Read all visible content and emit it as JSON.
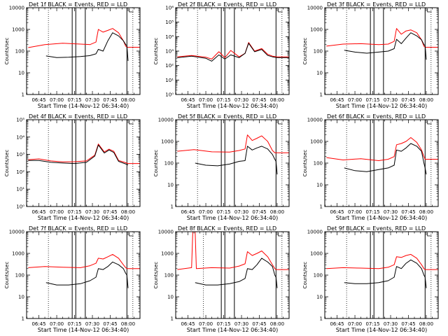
{
  "chart_data": [
    {
      "type": "line",
      "title": "Det 1f BLACK = Events, RED = LLD",
      "xlabel": "Start Time (14-Nov-12 06:34:40)",
      "ylabel": "Counts/sec",
      "yscale": "log",
      "ylim": [
        1,
        10000
      ],
      "xlim": [
        "06:34:40",
        "08:10:00"
      ],
      "yticks": [
        "1",
        "10",
        "100",
        "1000",
        "10000"
      ],
      "xticks": [
        "06:45",
        "07:00",
        "07:15",
        "07:30",
        "07:45",
        "08:00"
      ],
      "dotted_lines": [
        "06:53",
        "08:04"
      ],
      "solid_lines": [
        "07:13",
        "07:16",
        "07:24",
        "07:59"
      ],
      "series": [
        {
          "color": "#000000",
          "x": [
            "06:51",
            "07:00",
            "07:10",
            "07:20",
            "07:28",
            "07:33",
            "07:35",
            "07:39",
            "07:43",
            "07:47",
            "07:52",
            "07:56",
            "07:58",
            "07:59",
            "08:00"
          ],
          "values": [
            60,
            50,
            52,
            56,
            62,
            75,
            120,
            100,
            300,
            700,
            500,
            300,
            200,
            180,
            35
          ]
        },
        {
          "color": "#ff0000",
          "x": [
            "06:36",
            "06:50",
            "07:05",
            "07:20",
            "07:28",
            "07:33",
            "07:35",
            "07:39",
            "07:43",
            "07:47",
            "07:52",
            "07:56",
            "07:58",
            "07:59",
            "08:05",
            "08:10"
          ],
          "values": [
            145,
            200,
            230,
            210,
            200,
            260,
            1000,
            750,
            900,
            1100,
            700,
            300,
            170,
            150,
            150,
            150
          ]
        }
      ]
    },
    {
      "type": "line",
      "title": "Det 2f BLACK = Events, RED = LLD",
      "xlabel": "Start Time (14-Nov-12 06:34:40)",
      "ylabel": "Counts/sec",
      "yscale": "log",
      "ylim": [
        1,
        1000000
      ],
      "xlim": [
        "06:34:40",
        "08:10:00"
      ],
      "yticks": [
        "10⁰",
        "10¹",
        "10²",
        "10³",
        "10⁴",
        "10⁵",
        "10⁶"
      ],
      "xticks": [
        "06:45",
        "07:00",
        "07:15",
        "07:30",
        "07:45",
        "08:00"
      ],
      "dotted_lines": [
        "06:53",
        "08:04"
      ],
      "solid_lines": [
        "07:13",
        "07:16",
        "07:24",
        "07:59"
      ],
      "series": [
        {
          "color": "#000000",
          "x": [
            "06:36",
            "06:48",
            "07:00",
            "07:05",
            "07:11",
            "07:16",
            "07:21",
            "07:28",
            "07:33",
            "07:36",
            "07:41",
            "07:47",
            "07:52",
            "07:56",
            "08:00",
            "08:10"
          ],
          "values": [
            350,
            450,
            320,
            200,
            550,
            280,
            550,
            350,
            700,
            3500,
            900,
            1300,
            500,
            400,
            350,
            350
          ]
        },
        {
          "color": "#ff0000",
          "x": [
            "06:36",
            "06:48",
            "07:00",
            "07:05",
            "07:11",
            "07:16",
            "07:21",
            "07:28",
            "07:33",
            "07:36",
            "07:41",
            "07:47",
            "07:52",
            "07:56",
            "08:00",
            "08:10"
          ],
          "values": [
            400,
            500,
            380,
            280,
            900,
            350,
            1100,
            400,
            700,
            4000,
            1000,
            1500,
            600,
            450,
            400,
            400
          ]
        }
      ]
    },
    {
      "type": "line",
      "title": "Det 3f BLACK = Events, RED = LLD",
      "xlabel": "Start Time (14-Nov-12 06:34:40)",
      "ylabel": "Counts/sec",
      "yscale": "log",
      "ylim": [
        1,
        10000
      ],
      "xlim": [
        "06:34:40",
        "08:10:00"
      ],
      "yticks": [
        "1",
        "10",
        "100",
        "1000",
        "10000"
      ],
      "xticks": [
        "06:45",
        "07:00",
        "07:15",
        "07:30",
        "07:45",
        "08:00"
      ],
      "dotted_lines": [
        "06:53",
        "08:04"
      ],
      "solid_lines": [
        "07:13",
        "07:16",
        "07:24",
        "07:59"
      ],
      "series": [
        {
          "color": "#000000",
          "x": [
            "06:51",
            "07:00",
            "07:10",
            "07:20",
            "07:28",
            "07:33",
            "07:35",
            "07:39",
            "07:43",
            "07:47",
            "07:52",
            "07:56",
            "07:58",
            "07:59",
            "08:00"
          ],
          "values": [
            110,
            90,
            80,
            90,
            100,
            130,
            350,
            220,
            400,
            700,
            500,
            330,
            200,
            180,
            40
          ]
        },
        {
          "color": "#ff0000",
          "x": [
            "06:36",
            "06:50",
            "07:05",
            "07:20",
            "07:28",
            "07:33",
            "07:35",
            "07:39",
            "07:43",
            "07:47",
            "07:52",
            "07:56",
            "07:58",
            "07:59",
            "08:05",
            "08:10"
          ],
          "values": [
            170,
            210,
            220,
            200,
            210,
            280,
            1100,
            600,
            850,
            950,
            700,
            330,
            170,
            150,
            150,
            150
          ]
        }
      ]
    },
    {
      "type": "line",
      "title": "Det 4f BLACK = Events, RED = LLD",
      "xlabel": "Start Time (14-Nov-12 06:34:40)",
      "ylabel": "Counts/sec",
      "yscale": "log",
      "ylim": [
        1,
        100000
      ],
      "xlim": [
        "06:34:40",
        "08:10:00"
      ],
      "yticks": [
        "10⁰",
        "10¹",
        "10²",
        "10³",
        "10⁴",
        "10⁵"
      ],
      "xticks": [
        "06:45",
        "07:00",
        "07:15",
        "07:30",
        "07:45",
        "08:00"
      ],
      "dotted_lines": [
        "06:53",
        "08:04"
      ],
      "solid_lines": [
        "07:13",
        "07:16",
        "07:24",
        "07:59"
      ],
      "series": [
        {
          "color": "#000000",
          "x": [
            "06:36",
            "06:45",
            "06:55",
            "07:05",
            "07:15",
            "07:25",
            "07:32",
            "07:35",
            "07:40",
            "07:44",
            "07:48",
            "07:52",
            "07:57",
            "08:00"
          ],
          "values": [
            450,
            450,
            350,
            320,
            300,
            350,
            800,
            3500,
            1200,
            1800,
            1300,
            400,
            300,
            250
          ]
        },
        {
          "color": "#ff0000",
          "x": [
            "06:36",
            "06:45",
            "06:55",
            "07:05",
            "07:15",
            "07:25",
            "07:32",
            "07:35",
            "07:40",
            "07:44",
            "07:48",
            "07:52",
            "07:57",
            "08:00",
            "08:10"
          ],
          "values": [
            500,
            550,
            420,
            370,
            380,
            420,
            900,
            4000,
            1400,
            2000,
            1500,
            450,
            350,
            300,
            300
          ]
        }
      ]
    },
    {
      "type": "line",
      "title": "Det 5f BLACK = Events, RED = LLD",
      "xlabel": "Start Time (14-Nov-12 06:34:40)",
      "ylabel": "Counts/sec",
      "yscale": "log",
      "ylim": [
        1,
        10000
      ],
      "xlim": [
        "06:34:40",
        "08:10:00"
      ],
      "yticks": [
        "1",
        "10",
        "100",
        "1000",
        "10000"
      ],
      "xticks": [
        "06:45",
        "07:00",
        "07:15",
        "07:30",
        "07:45",
        "08:00"
      ],
      "dotted_lines": [
        "06:53",
        "08:04"
      ],
      "solid_lines": [
        "07:13",
        "07:16",
        "07:24",
        "07:59"
      ],
      "series": [
        {
          "color": "#000000",
          "x": [
            "06:51",
            "07:00",
            "07:10",
            "07:20",
            "07:28",
            "07:33",
            "07:35",
            "07:39",
            "07:43",
            "07:47",
            "07:52",
            "07:56",
            "07:58",
            "07:59",
            "08:00"
          ],
          "values": [
            100,
            80,
            75,
            90,
            120,
            130,
            600,
            400,
            500,
            600,
            450,
            250,
            150,
            120,
            30
          ]
        },
        {
          "color": "#ff0000",
          "x": [
            "06:36",
            "06:50",
            "07:05",
            "07:20",
            "07:28",
            "07:33",
            "07:35",
            "07:39",
            "07:43",
            "07:47",
            "07:52",
            "07:56",
            "07:58",
            "07:59",
            "08:05",
            "08:10"
          ],
          "values": [
            350,
            420,
            330,
            320,
            380,
            450,
            2000,
            1100,
            1400,
            1800,
            1000,
            380,
            300,
            300,
            300,
            300
          ]
        }
      ]
    },
    {
      "type": "line",
      "title": "Det 6f BLACK = Events, RED = LLD",
      "xlabel": "Start Time (14-Nov-12 06:34:40)",
      "ylabel": "Counts/sec",
      "yscale": "log",
      "ylim": [
        1,
        10000
      ],
      "xlim": [
        "06:34:40",
        "08:10:00"
      ],
      "yticks": [
        "1",
        "10",
        "100",
        "1000",
        "10000"
      ],
      "xticks": [
        "06:45",
        "07:00",
        "07:15",
        "07:30",
        "07:45",
        "08:00"
      ],
      "dotted_lines": [
        "06:53",
        "08:04"
      ],
      "solid_lines": [
        "07:13",
        "07:16",
        "07:24",
        "07:59"
      ],
      "series": [
        {
          "color": "#000000",
          "x": [
            "06:51",
            "07:00",
            "07:10",
            "07:20",
            "07:28",
            "07:33",
            "07:35",
            "07:39",
            "07:43",
            "07:47",
            "07:52",
            "07:56",
            "07:58",
            "07:59",
            "08:00"
          ],
          "values": [
            60,
            45,
            40,
            50,
            60,
            80,
            400,
            350,
            500,
            800,
            600,
            350,
            100,
            60,
            30
          ]
        },
        {
          "color": "#ff0000",
          "x": [
            "06:36",
            "06:50",
            "07:05",
            "07:20",
            "07:28",
            "07:33",
            "07:35",
            "07:39",
            "07:43",
            "07:47",
            "07:52",
            "07:56",
            "07:58",
            "07:59",
            "08:05",
            "08:10"
          ],
          "values": [
            180,
            140,
            160,
            130,
            150,
            200,
            700,
            800,
            1000,
            1500,
            900,
            400,
            200,
            150,
            150,
            150
          ]
        }
      ]
    },
    {
      "type": "line",
      "title": "Det 7f BLACK = Events, RED = LLD",
      "xlabel": "Start Time (14-Nov-12 06:34:40)",
      "ylabel": "Counts/sec",
      "yscale": "log",
      "ylim": [
        1,
        10000
      ],
      "xlim": [
        "06:34:40",
        "08:10:00"
      ],
      "yticks": [
        "1",
        "10",
        "100",
        "1000",
        "10000"
      ],
      "xticks": [
        "06:45",
        "07:00",
        "07:15",
        "07:30",
        "07:45",
        "08:00"
      ],
      "dotted_lines": [
        "06:53",
        "08:04"
      ],
      "solid_lines": [
        "07:13",
        "07:16",
        "07:24",
        "07:59"
      ],
      "series": [
        {
          "color": "#000000",
          "x": [
            "06:51",
            "07:00",
            "07:10",
            "07:20",
            "07:28",
            "07:33",
            "07:35",
            "07:39",
            "07:43",
            "07:47",
            "07:52",
            "07:56",
            "07:58",
            "07:59",
            "08:00"
          ],
          "values": [
            45,
            35,
            35,
            40,
            55,
            80,
            200,
            180,
            250,
            400,
            300,
            200,
            120,
            100,
            25
          ]
        },
        {
          "color": "#ff0000",
          "x": [
            "06:36",
            "06:50",
            "07:05",
            "07:20",
            "07:28",
            "07:33",
            "07:35",
            "07:39",
            "07:43",
            "07:47",
            "07:52",
            "07:56",
            "07:58",
            "07:59",
            "08:05",
            "08:10"
          ],
          "values": [
            220,
            250,
            230,
            220,
            270,
            350,
            600,
            550,
            700,
            900,
            600,
            300,
            220,
            200,
            200,
            200
          ]
        }
      ]
    },
    {
      "type": "line",
      "title": "Det 8f BLACK = Events, RED = LLD",
      "xlabel": "Start Time (14-Nov-12 06:34:40)",
      "ylabel": "Counts/sec",
      "yscale": "log",
      "ylim": [
        1,
        10000
      ],
      "xlim": [
        "06:34:40",
        "08:10:00"
      ],
      "yticks": [
        "1",
        "10",
        "100",
        "1000",
        "10000"
      ],
      "xticks": [
        "06:45",
        "07:00",
        "07:15",
        "07:30",
        "07:45",
        "08:00"
      ],
      "dotted_lines": [
        "06:58",
        "08:04"
      ],
      "solid_lines": [
        "07:13",
        "07:16",
        "07:24",
        "07:59"
      ],
      "series": [
        {
          "color": "#000000",
          "x": [
            "06:51",
            "07:00",
            "07:10",
            "07:20",
            "07:28",
            "07:33",
            "07:35",
            "07:39",
            "07:43",
            "07:47",
            "07:52",
            "07:56",
            "07:58",
            "07:59",
            "08:00"
          ],
          "values": [
            45,
            35,
            35,
            40,
            50,
            70,
            200,
            180,
            300,
            600,
            400,
            250,
            100,
            80,
            25
          ]
        },
        {
          "color": "#ff0000",
          "x": [
            "06:36",
            "06:48",
            "06:49",
            "06:51",
            "06:52",
            "07:05",
            "07:20",
            "07:28",
            "07:33",
            "07:35",
            "07:39",
            "07:43",
            "07:47",
            "07:52",
            "07:56",
            "07:58",
            "07:59",
            "08:05",
            "08:10"
          ],
          "values": [
            180,
            220,
            10000,
            10000,
            200,
            220,
            210,
            260,
            330,
            1200,
            800,
            1000,
            1300,
            700,
            300,
            200,
            180,
            180,
            180
          ]
        }
      ]
    },
    {
      "type": "line",
      "title": "Det 9f BLACK = Events, RED = LLD",
      "xlabel": "Start Time (14-Nov-12 06:34:40)",
      "ylabel": "Counts/sec",
      "yscale": "log",
      "ylim": [
        1,
        10000
      ],
      "xlim": [
        "06:34:40",
        "08:10:00"
      ],
      "yticks": [
        "1",
        "10",
        "100",
        "1000",
        "10000"
      ],
      "xticks": [
        "06:45",
        "07:00",
        "07:15",
        "07:30",
        "07:45",
        "08:00"
      ],
      "dotted_lines": [
        "06:53",
        "08:04"
      ],
      "solid_lines": [
        "07:13",
        "07:16",
        "07:24",
        "07:59"
      ],
      "series": [
        {
          "color": "#000000",
          "x": [
            "06:51",
            "07:00",
            "07:10",
            "07:20",
            "07:28",
            "07:33",
            "07:35",
            "07:39",
            "07:43",
            "07:47",
            "07:52",
            "07:56",
            "07:58",
            "07:59",
            "08:00"
          ],
          "values": [
            45,
            40,
            40,
            45,
            55,
            80,
            250,
            200,
            350,
            500,
            350,
            200,
            100,
            80,
            25
          ]
        },
        {
          "color": "#ff0000",
          "x": [
            "06:36",
            "06:50",
            "07:05",
            "07:20",
            "07:28",
            "07:33",
            "07:35",
            "07:39",
            "07:43",
            "07:47",
            "07:52",
            "07:56",
            "07:58",
            "07:59",
            "08:05",
            "08:10"
          ],
          "values": [
            200,
            220,
            210,
            200,
            230,
            300,
            700,
            650,
            800,
            900,
            600,
            300,
            200,
            180,
            180,
            180
          ]
        }
      ]
    }
  ]
}
